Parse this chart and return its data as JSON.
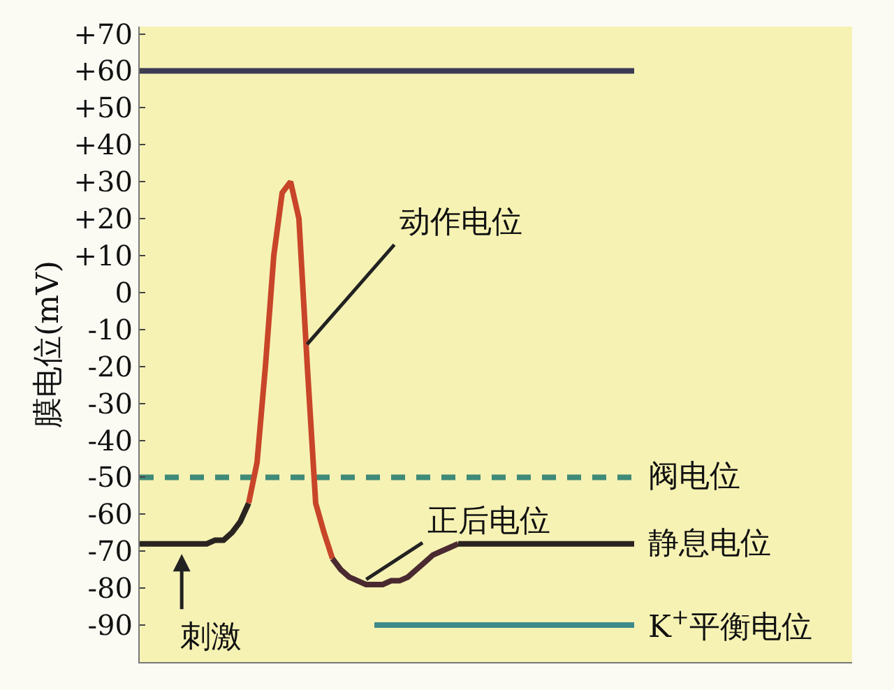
{
  "chart_data": {
    "type": "line",
    "ylabel": "膜电位(mV)",
    "ylim": [
      -100,
      72
    ],
    "yticks": [
      {
        "value": 70,
        "label": "+70"
      },
      {
        "value": 60,
        "label": "+60"
      },
      {
        "value": 50,
        "label": "+50"
      },
      {
        "value": 40,
        "label": "+40"
      },
      {
        "value": 30,
        "label": "+30"
      },
      {
        "value": 20,
        "label": "+20"
      },
      {
        "value": 10,
        "label": "+10"
      },
      0,
      -10,
      -20,
      -30,
      -40,
      -50,
      -60,
      -70,
      -80,
      -90
    ],
    "categories": [
      null,
      null,
      null,
      null,
      null,
      null,
      null,
      null,
      null,
      null,
      null,
      null,
      null,
      null,
      null,
      null,
      null,
      null,
      null,
      null,
      null,
      null,
      null,
      null,
      null,
      null,
      null,
      null,
      null,
      null,
      null,
      null,
      null,
      null,
      null,
      null,
      null,
      null,
      null,
      null,
      null,
      null,
      null,
      null,
      null,
      null,
      null,
      null,
      null,
      null,
      null,
      null,
      null,
      null,
      null,
      null,
      null,
      null,
      null,
      null,
      null,
      null,
      null,
      null,
      null,
      null,
      null,
      null,
      null,
      null,
      null,
      null,
      null,
      null,
      null,
      null,
      null,
      null,
      null,
      null,
      null,
      null,
      null,
      null,
      null,
      null
    ],
    "tick_labels": "y",
    "grid": false,
    "series": [
      {
        "color": "#3b3a55",
        "values": [
          60,
          60,
          60,
          60,
          60,
          60,
          60,
          60,
          60,
          60,
          60,
          60,
          60,
          60,
          60,
          60,
          60,
          60,
          60,
          60,
          60,
          60,
          60,
          60,
          60,
          60,
          60,
          60,
          60,
          60,
          60,
          60,
          60,
          60,
          60,
          60,
          60,
          60,
          60,
          60,
          60,
          60,
          60,
          60,
          60,
          60,
          60,
          60,
          60,
          60,
          60,
          60,
          60,
          60,
          60,
          60,
          60,
          60,
          60,
          60,
          null,
          null,
          null,
          null,
          null,
          null,
          null,
          null,
          null,
          null,
          null,
          null,
          null,
          null,
          null,
          null,
          null,
          null,
          null,
          null,
          null,
          null,
          null,
          null,
          null,
          null
        ]
      },
      {
        "name": "阀电位",
        "color": "#3f8a78",
        "line_style": "dashed",
        "values": [
          -50,
          -50,
          -50,
          -50,
          -50,
          -50,
          -50,
          -50,
          -50,
          -50,
          -50,
          -50,
          -50,
          -50,
          -50,
          -50,
          -50,
          -50,
          -50,
          -50,
          -50,
          -50,
          -50,
          -50,
          -50,
          -50,
          -50,
          -50,
          -50,
          -50,
          -50,
          -50,
          -50,
          -50,
          -50,
          -50,
          -50,
          -50,
          -50,
          -50,
          -50,
          -50,
          -50,
          -50,
          -50,
          -50,
          -50,
          -50,
          -50,
          -50,
          -50,
          -50,
          -50,
          -50,
          -50,
          -50,
          -50,
          -50,
          -50,
          -50,
          null,
          null,
          null,
          null,
          null,
          null,
          null,
          null,
          null,
          null,
          null,
          null,
          null,
          null,
          null,
          null,
          null,
          null,
          null,
          null,
          null,
          null,
          null,
          null,
          null,
          null
        ]
      },
      {
        "name": "K$^{+}$平衡电位",
        "color": "#3f8a8a",
        "values": [
          null,
          null,
          null,
          null,
          null,
          null,
          null,
          null,
          null,
          null,
          null,
          null,
          null,
          null,
          null,
          null,
          null,
          null,
          null,
          null,
          null,
          null,
          null,
          null,
          null,
          null,
          null,
          null,
          -90,
          -90,
          -90,
          -90,
          -90,
          -90,
          -90,
          -90,
          -90,
          -90,
          -90,
          -90,
          -90,
          -90,
          -90,
          -90,
          -90,
          -90,
          -90,
          -90,
          -90,
          -90,
          -90,
          -90,
          -90,
          -90,
          -90,
          -90,
          -90,
          -90,
          -90,
          -90,
          null,
          null,
          null,
          null,
          null,
          null,
          null,
          null,
          null,
          null,
          null,
          null,
          null,
          null,
          null,
          null,
          null,
          null,
          null,
          null,
          null,
          null,
          null,
          null,
          null,
          null
        ]
      },
      {
        "color": "#2a2420",
        "values": [
          -68,
          -68,
          -68,
          -68,
          -68,
          -68,
          -68,
          -68,
          -68,
          -67,
          -67,
          -65,
          -62,
          -57,
          null,
          null,
          null,
          null,
          null,
          null,
          null,
          null,
          null,
          null,
          null,
          null,
          null,
          null,
          null,
          null,
          null,
          null,
          null,
          null,
          null,
          null,
          null,
          null,
          null,
          null,
          null,
          null,
          null,
          null,
          null,
          null,
          null,
          null,
          null,
          null,
          null,
          null,
          null,
          null,
          null,
          null,
          null,
          null,
          null,
          null,
          null,
          null,
          null,
          null,
          null,
          null,
          null,
          null,
          null,
          null,
          null,
          null,
          null,
          null,
          null,
          null,
          null,
          null,
          null,
          null,
          null,
          null,
          null,
          null,
          null,
          null
        ]
      },
      {
        "color": "#c8452a",
        "values": [
          null,
          null,
          null,
          null,
          null,
          null,
          null,
          null,
          null,
          null,
          null,
          null,
          null,
          -57,
          -46,
          -20,
          10,
          27,
          30,
          20,
          -20,
          -57,
          -65,
          -72,
          null,
          null,
          null,
          null,
          null,
          null,
          null,
          null,
          null,
          null,
          null,
          null,
          null,
          null,
          null,
          null,
          null,
          null,
          null,
          null,
          null,
          null,
          null,
          null,
          null,
          null,
          null,
          null,
          null,
          null,
          null,
          null,
          null,
          null,
          null,
          null,
          null,
          null,
          null,
          null,
          null,
          null,
          null,
          null,
          null,
          null,
          null,
          null,
          null,
          null,
          null,
          null,
          null,
          null,
          null,
          null,
          null,
          null,
          null,
          null,
          null,
          null
        ]
      },
      {
        "color": "#4a2a30",
        "values": [
          null,
          null,
          null,
          null,
          null,
          null,
          null,
          null,
          null,
          null,
          null,
          null,
          null,
          null,
          null,
          null,
          null,
          null,
          null,
          null,
          null,
          null,
          null,
          -72,
          -75,
          -77,
          -78,
          -79,
          -79,
          -79,
          -78,
          -78,
          -77,
          -75,
          -73,
          -71,
          -70,
          -69,
          -68,
          null,
          null,
          null,
          null,
          null,
          null,
          null,
          null,
          null,
          null,
          null,
          null,
          null,
          null,
          null,
          null,
          null,
          null,
          null,
          null,
          null,
          null,
          null,
          null,
          null,
          null,
          null,
          null,
          null,
          null,
          null,
          null,
          null,
          null,
          null,
          null,
          null,
          null,
          null,
          null,
          null,
          null,
          null,
          null,
          null,
          null,
          null
        ]
      },
      {
        "name": "静息电位",
        "color": "#2a2420",
        "values": [
          null,
          null,
          null,
          null,
          null,
          null,
          null,
          null,
          null,
          null,
          null,
          null,
          null,
          null,
          null,
          null,
          null,
          null,
          null,
          null,
          null,
          null,
          null,
          null,
          null,
          null,
          null,
          null,
          null,
          null,
          null,
          null,
          null,
          null,
          null,
          null,
          null,
          null,
          -68,
          -68,
          -68,
          -68,
          -68,
          -68,
          -68,
          -68,
          -68,
          -68,
          -68,
          -68,
          -68,
          -68,
          -68,
          -68,
          -68,
          -68,
          -68,
          -68,
          -68,
          -68,
          null,
          null,
          null,
          null,
          null,
          null,
          null,
          null,
          null,
          null,
          null,
          null,
          null,
          null,
          null,
          null,
          null,
          null,
          null,
          null,
          null,
          null,
          null,
          null,
          null,
          null
        ]
      }
    ],
    "annotations": [
      "动作电位",
      "正后电位",
      "刺激"
    ]
  }
}
